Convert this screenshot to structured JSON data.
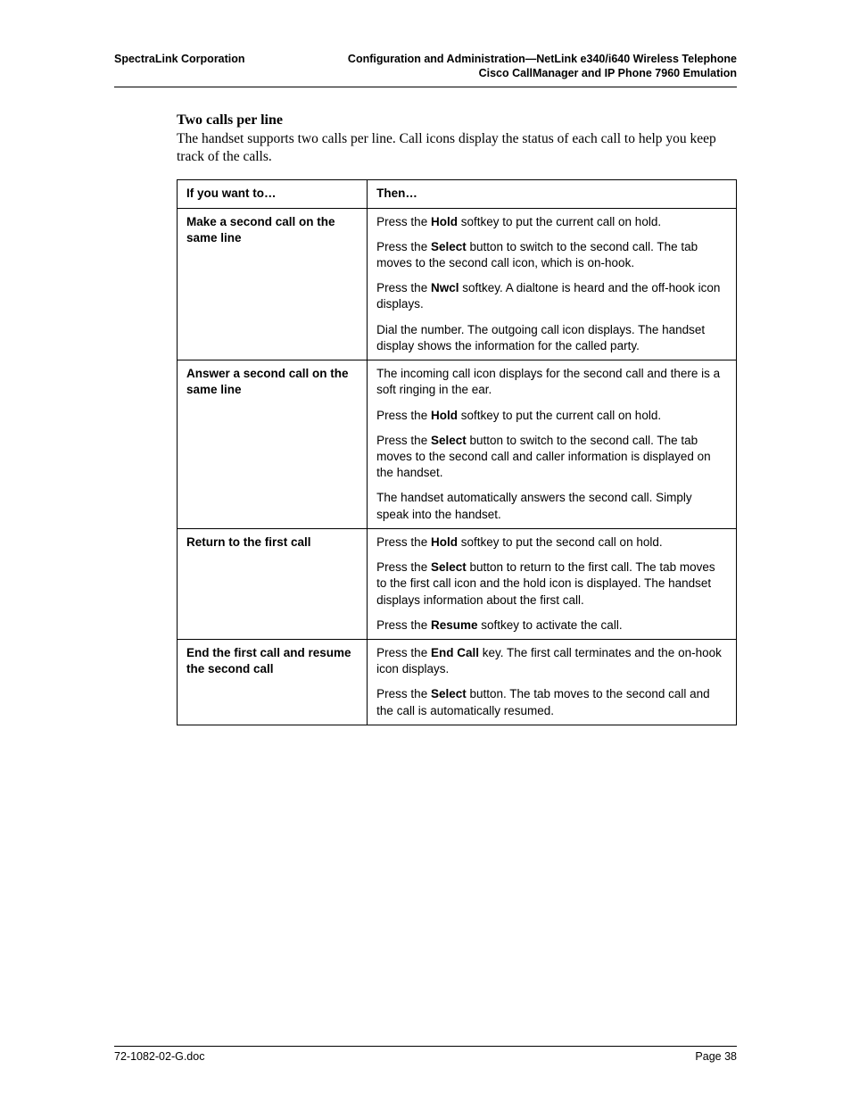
{
  "header": {
    "left": "SpectraLink Corporation",
    "right_line1": "Configuration and Administration—NetLink e340/i640 Wireless Telephone",
    "right_line2": "Cisco CallManager and IP Phone 7960 Emulation"
  },
  "section": {
    "title": "Two calls per line",
    "body": "The handset supports two calls per line. Call icons display the status of each call to help you keep track of the calls."
  },
  "table": {
    "headers": {
      "col1": "If you want to…",
      "col2": "Then…"
    },
    "rows": [
      {
        "left": "Make a second call on the same line",
        "steps": [
          [
            [
              "t",
              "Press the "
            ],
            [
              "b",
              "Hold"
            ],
            [
              "t",
              " softkey to put the current call on hold."
            ]
          ],
          [
            [
              "t",
              "Press the "
            ],
            [
              "b",
              "Select"
            ],
            [
              "t",
              " button to switch to the second call. The tab moves to the second call icon, which is on-hook."
            ]
          ],
          [
            [
              "t",
              "Press the "
            ],
            [
              "b",
              "Nwcl"
            ],
            [
              "t",
              " softkey. A dialtone is heard and the off-hook icon displays."
            ]
          ],
          [
            [
              "t",
              "Dial the number. The outgoing call icon displays. The handset display shows the information for the called party."
            ]
          ]
        ]
      },
      {
        "left": "Answer a second call on the same line",
        "steps": [
          [
            [
              "t",
              "The incoming call icon displays for the second call and there is a soft ringing in the ear."
            ]
          ],
          [
            [
              "t",
              "Press the "
            ],
            [
              "b",
              "Hold"
            ],
            [
              "t",
              " softkey to put the current call on hold."
            ]
          ],
          [
            [
              "t",
              "Press the "
            ],
            [
              "b",
              "Select"
            ],
            [
              "t",
              " button to switch to the second call. The tab moves to the second call and caller information is displayed on the handset."
            ]
          ],
          [
            [
              "t",
              "The handset automatically answers the second call. Simply speak into the handset."
            ]
          ]
        ]
      },
      {
        "left": "Return to the first call",
        "steps": [
          [
            [
              "t",
              "Press the "
            ],
            [
              "b",
              "Hold"
            ],
            [
              "t",
              " softkey to put the second call on hold."
            ]
          ],
          [
            [
              "t",
              "Press the "
            ],
            [
              "b",
              "Select"
            ],
            [
              "t",
              " button to return to the first call. The tab moves to the first call icon and the hold icon is displayed. The handset displays information about the first call."
            ]
          ],
          [
            [
              "t",
              "Press the "
            ],
            [
              "b",
              "Resume"
            ],
            [
              "t",
              " softkey to activate the call."
            ]
          ]
        ]
      },
      {
        "left": "End the first call and resume the second call",
        "steps": [
          [
            [
              "t",
              "Press the "
            ],
            [
              "b",
              "End Call"
            ],
            [
              "t",
              " key. The first call terminates and the on-hook icon displays."
            ]
          ],
          [
            [
              "t",
              "Press the "
            ],
            [
              "b",
              "Select"
            ],
            [
              "t",
              " button. The tab moves to the second call and the call is automatically resumed."
            ]
          ]
        ]
      }
    ]
  },
  "footer": {
    "left": "72-1082-02-G.doc",
    "right": "Page 38"
  }
}
